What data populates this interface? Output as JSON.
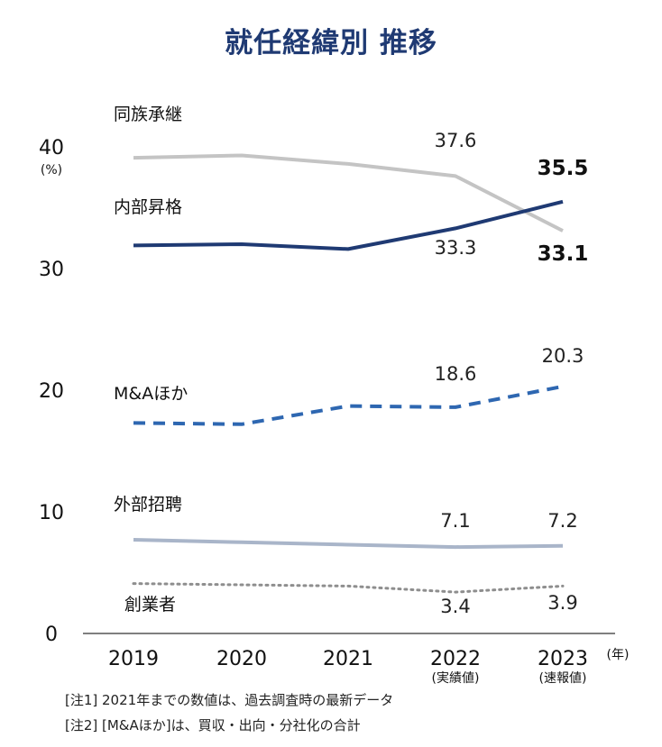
{
  "title": "就任経緯別 推移",
  "colors": {
    "title": "#1f3a73",
    "succession": "#c4c4c4",
    "internal": "#1f3a73",
    "ma": "#2e67b1",
    "external": "#a9b5c9",
    "founder": "#8e8e8e",
    "axis": "#555555"
  },
  "chart_data": {
    "type": "line",
    "title": "就任経緯別 推移",
    "ylabel": "(%)",
    "xunit": "(年)",
    "ylim": [
      0,
      40
    ],
    "yticks": [
      "0",
      "10",
      "20",
      "30",
      "40"
    ],
    "categories": [
      "2019",
      "2020",
      "2021",
      "2022",
      "2023"
    ],
    "category_sublabels": [
      "",
      "",
      "",
      "(実績値)",
      "(速報値)"
    ],
    "series": [
      {
        "name": "同族承継",
        "values": [
          39.1,
          39.3,
          38.6,
          37.6,
          33.1
        ],
        "style": "solid",
        "labels": [
          {
            "index": 3,
            "text": "37.6",
            "bold": false
          },
          {
            "index": 4,
            "text": "33.1",
            "bold": true
          }
        ]
      },
      {
        "name": "内部昇格",
        "values": [
          31.9,
          32.0,
          31.6,
          33.3,
          35.5
        ],
        "style": "solid",
        "labels": [
          {
            "index": 3,
            "text": "33.3",
            "bold": false
          },
          {
            "index": 4,
            "text": "35.5",
            "bold": true
          }
        ]
      },
      {
        "name": "M&Aほか",
        "values": [
          17.3,
          17.2,
          18.7,
          18.6,
          20.3
        ],
        "style": "dashed",
        "labels": [
          {
            "index": 3,
            "text": "18.6",
            "bold": false
          },
          {
            "index": 4,
            "text": "20.3",
            "bold": false
          }
        ]
      },
      {
        "name": "外部招聘",
        "values": [
          7.7,
          7.5,
          7.3,
          7.1,
          7.2
        ],
        "style": "solid",
        "labels": [
          {
            "index": 3,
            "text": "7.1",
            "bold": false
          },
          {
            "index": 4,
            "text": "7.2",
            "bold": false
          }
        ]
      },
      {
        "name": "創業者",
        "values": [
          4.1,
          4.0,
          3.9,
          3.4,
          3.9
        ],
        "style": "dotted",
        "labels": [
          {
            "index": 3,
            "text": "3.4",
            "bold": false
          },
          {
            "index": 4,
            "text": "3.9",
            "bold": false
          }
        ]
      }
    ]
  },
  "notes": [
    "[注1] 2021年までの数値は、過去調査時の最新データ",
    "[注2] [M&Aほか]は、買収・出向・分社化の合計"
  ]
}
